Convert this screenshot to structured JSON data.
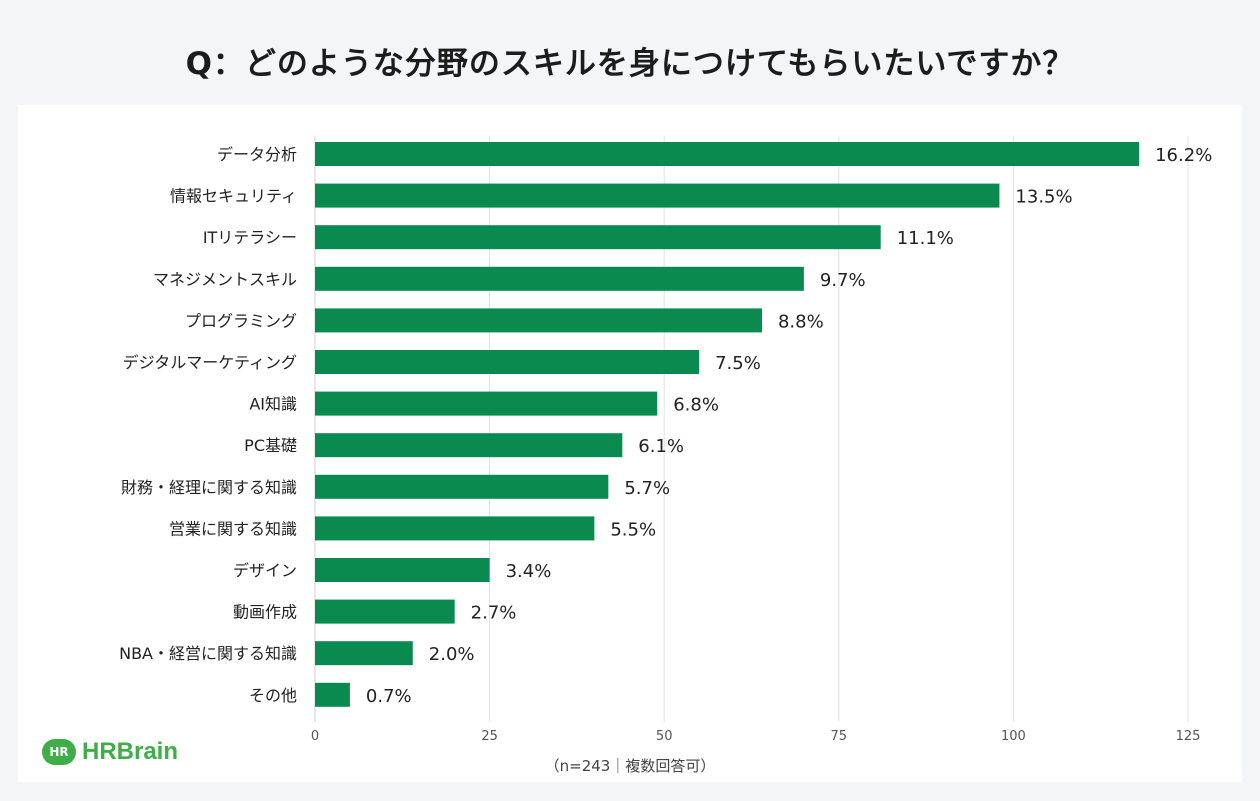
{
  "title": "Q：どのような分野のスキルを身につけてもらいたいですか？",
  "note": "（n=243｜複数回答可）",
  "logo": "HRBrain",
  "colors": {
    "bar": "#0b8a4f",
    "grid": "#e2e2e2"
  },
  "chart_data": {
    "type": "bar",
    "orientation": "horizontal",
    "categories": [
      "データ分析",
      "情報セキュリティ",
      "ITリテラシー",
      "マネジメントスキル",
      "プログラミング",
      "デジタルマーケティング",
      "AI知識",
      "PC基礎",
      "財務・経理に関する知識",
      "営業に関する知識",
      "デザイン",
      "動画作成",
      "NBA・経営に関する知識",
      "その他"
    ],
    "values": [
      118,
      98,
      81,
      70,
      64,
      55,
      49,
      44,
      42,
      40,
      25,
      20,
      14,
      5
    ],
    "labels": [
      "16.2%",
      "13.5%",
      "11.1%",
      "9.7%",
      "8.8%",
      "7.5%",
      "6.8%",
      "6.1%",
      "5.7%",
      "5.5%",
      "3.4%",
      "2.7%",
      "2.0%",
      "0.7%"
    ],
    "xlim": [
      0,
      125
    ],
    "xticks": [
      "0",
      "25",
      "50",
      "75",
      "100",
      "125"
    ],
    "grid": true
  }
}
